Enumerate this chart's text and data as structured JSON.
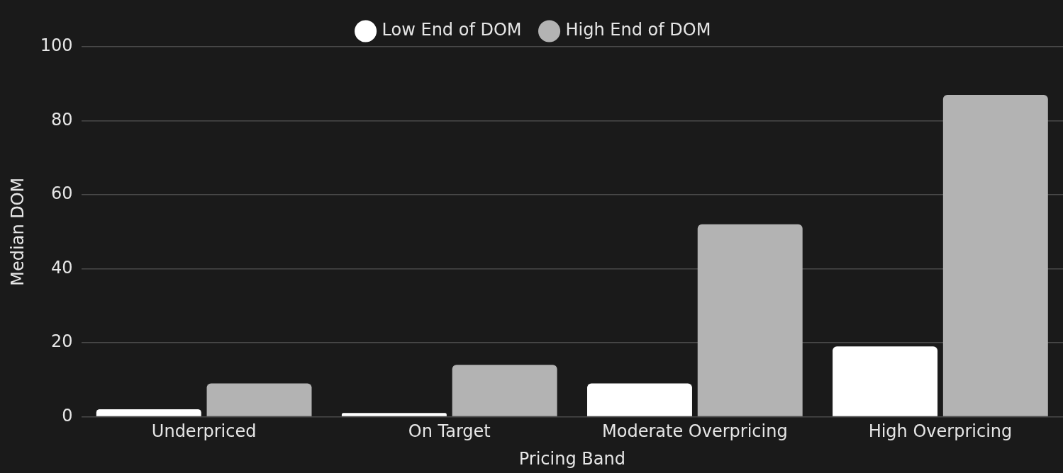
{
  "chart_data": {
    "type": "bar",
    "xlabel": "Pricing Band",
    "ylabel": "Median DOM",
    "categories": [
      "Underpriced",
      "On Target",
      "Moderate Overpricing",
      "High Overpricing"
    ],
    "series": [
      {
        "name": "Low End of DOM",
        "color": "#ffffff",
        "values": [
          2,
          1,
          9,
          19
        ]
      },
      {
        "name": "High End of DOM",
        "color": "#b3b3b3",
        "values": [
          9,
          14,
          52,
          87
        ]
      }
    ],
    "ylim": [
      0,
      100
    ],
    "yticks": [
      0,
      20,
      40,
      60,
      80,
      100
    ],
    "grid": "y",
    "legend": "top"
  }
}
